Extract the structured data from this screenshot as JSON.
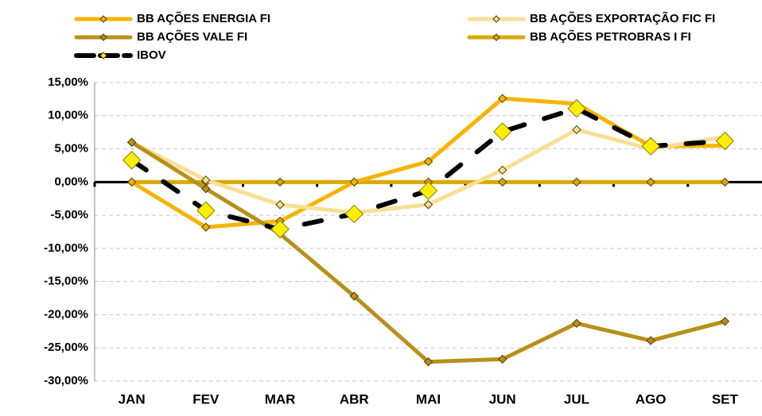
{
  "chart_data": {
    "type": "line",
    "categories": [
      "JAN",
      "FEV",
      "MAR",
      "ABR",
      "MAI",
      "JUN",
      "JUL",
      "AGO",
      "SET"
    ],
    "series": [
      {
        "name": "BB AÇÕES ENERGIA FI",
        "color": "#f5b400",
        "values": [
          0,
          -6.8,
          -5.9,
          0,
          3.1,
          12.6,
          11.8,
          5.4,
          5.5
        ]
      },
      {
        "name": "BB AÇÕES EXPORTAÇÃO FIC FI",
        "color": "#f8df94",
        "values": [
          6.0,
          0.3,
          -3.4,
          -4.6,
          -3.4,
          1.8,
          7.9,
          5.0,
          6.8
        ]
      },
      {
        "name": "BB AÇÕES VALE FI",
        "color": "#b8901a",
        "values": [
          6.0,
          -1.0,
          -7.8,
          -17.2,
          -27.1,
          -26.7,
          -21.3,
          -23.9,
          -21.0
        ]
      },
      {
        "name": "BB AÇÕES PETROBRAS I FI",
        "color": "#dba800",
        "values": [
          0,
          0,
          0,
          0,
          0,
          0,
          0,
          0,
          0
        ]
      },
      {
        "name": "IBOV",
        "color": "#000000",
        "marker_color": "#ffee00",
        "values": [
          3.3,
          -4.3,
          -7.1,
          -4.8,
          -1.3,
          7.6,
          11.1,
          5.4,
          6.2
        ]
      }
    ],
    "ylim": [
      -30,
      15
    ],
    "yticks": [
      {
        "value": -30,
        "label": "-30,00%"
      },
      {
        "value": -25,
        "label": "-25,00%"
      },
      {
        "value": -20,
        "label": "-20,00%"
      },
      {
        "value": -15,
        "label": "-15,00%"
      },
      {
        "value": -10,
        "label": "-10,00%"
      },
      {
        "value": -5,
        "label": "-5,00%"
      },
      {
        "value": 0,
        "label": "0,00%"
      },
      {
        "value": 5,
        "label": "5,00%"
      },
      {
        "value": 10,
        "label": "10,00%"
      },
      {
        "value": 15,
        "label": "15,00%"
      }
    ],
    "grid": true
  }
}
